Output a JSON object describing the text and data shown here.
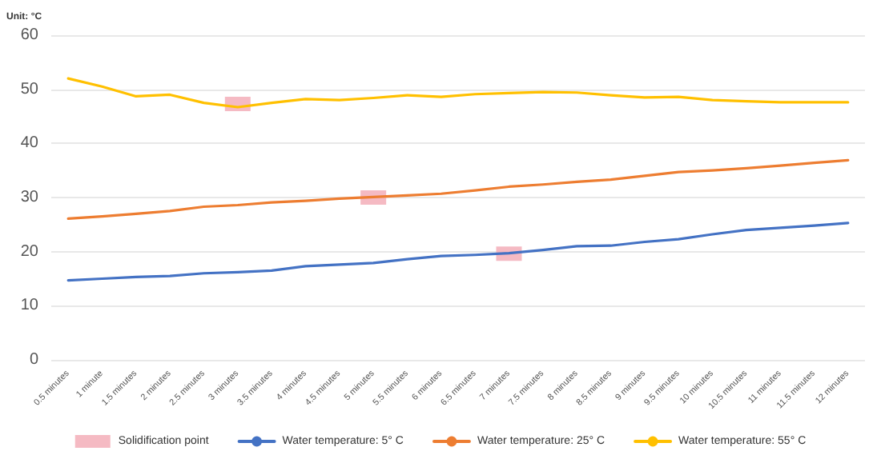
{
  "chart_data": {
    "type": "line",
    "ylabel": "Unit: °C",
    "categories": [
      "0.5 minutes",
      "1 minute",
      "1.5 minutes",
      "2 minutes",
      "2.5 minutes",
      "3 minutes",
      "3.5 minutes",
      "4 minutes",
      "4.5 minutes",
      "5 minutes",
      "5.5 minutes",
      "6 minutes",
      "6.5 minutes",
      "7 minutes",
      "7.5 minutes",
      "8 minutes",
      "8.5 minutes",
      "9 minutes",
      "9.5 minutes",
      "10 minutes",
      "10.5 minutes",
      "11 minutes",
      "11.5 minutes",
      "12 minutes"
    ],
    "series": [
      {
        "name": "Solidification point",
        "type": "scatter",
        "marker": "square",
        "color": "#f4b3bd",
        "x": [
          "3 minutes",
          "5 minutes",
          "7 minutes"
        ],
        "values": [
          47.3,
          30,
          19.6
        ]
      },
      {
        "name": "Water temperature: 5° C",
        "color": "#4472c4",
        "values": [
          14.7,
          15,
          15.3,
          15.5,
          16,
          16.2,
          16.5,
          17.3,
          17.6,
          17.9,
          18.6,
          19.2,
          19.4,
          19.7,
          20.3,
          21,
          21.1,
          21.8,
          22.3,
          23.2,
          24,
          24.4,
          24.8,
          25.3
        ]
      },
      {
        "name": "Water temperature: 25° C",
        "color": "#ed7d31",
        "values": [
          26.1,
          26.5,
          27,
          27.5,
          28.3,
          28.6,
          29.1,
          29.4,
          29.8,
          30.1,
          30.4,
          30.7,
          31.3,
          32,
          32.4,
          32.9,
          33.3,
          34,
          34.7,
          35,
          35.4,
          35.9,
          36.4,
          36.9
        ]
      },
      {
        "name": "Water temperature: 55° C",
        "color": "#ffc000",
        "values": [
          52,
          50.5,
          48.7,
          49,
          47.5,
          46.7,
          47.5,
          48.2,
          48,
          48.4,
          48.9,
          48.6,
          49.1,
          49.3,
          49.5,
          49.4,
          48.9,
          48.5,
          48.6,
          48,
          47.8,
          47.6,
          47.6,
          47.6
        ]
      }
    ],
    "ylim": [
      0,
      60
    ],
    "yticks": [
      0,
      10,
      20,
      30,
      40,
      50,
      60
    ],
    "grid": "y",
    "legend": "bottom",
    "marker": "none"
  }
}
